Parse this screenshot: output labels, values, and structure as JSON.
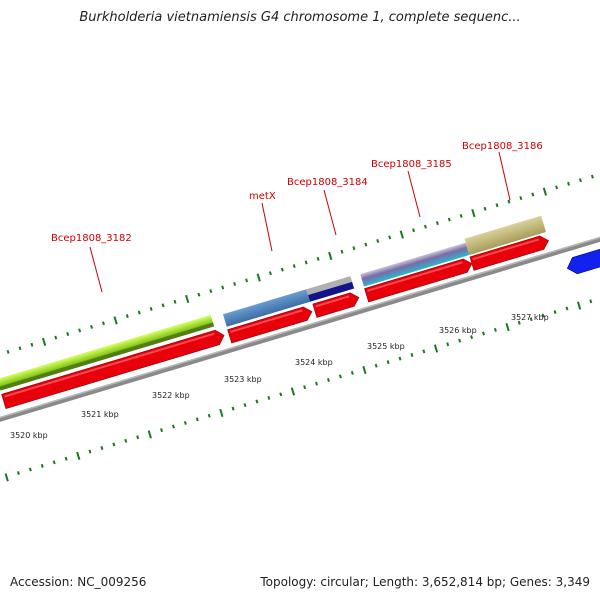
{
  "title": "Burkholderia vietnamiensis G4 chromosome 1, complete sequenc...",
  "footer": {
    "accession": "Accession: NC_009256",
    "summary": "Topology: circular; Length: 3,652,814 bp; Genes: 3,349"
  },
  "colors": {
    "forward_cds": "#e8000b",
    "backbone": "#8c8c8c",
    "tick": "#1a7a1a",
    "label": "#cc0000",
    "reverse_cds": "#1122ee"
  },
  "genes": [
    {
      "name": "Bcep1808_3182"
    },
    {
      "name": "metX"
    },
    {
      "name": "Bcep1808_3184"
    },
    {
      "name": "Bcep1808_3185"
    },
    {
      "name": "Bcep1808_3186"
    }
  ],
  "kbp_labels": [
    "3520 kbp",
    "3521 kbp",
    "3522 kbp",
    "3523 kbp",
    "3524 kbp",
    "3525 kbp",
    "3526 kbp",
    "3527 kbp"
  ]
}
